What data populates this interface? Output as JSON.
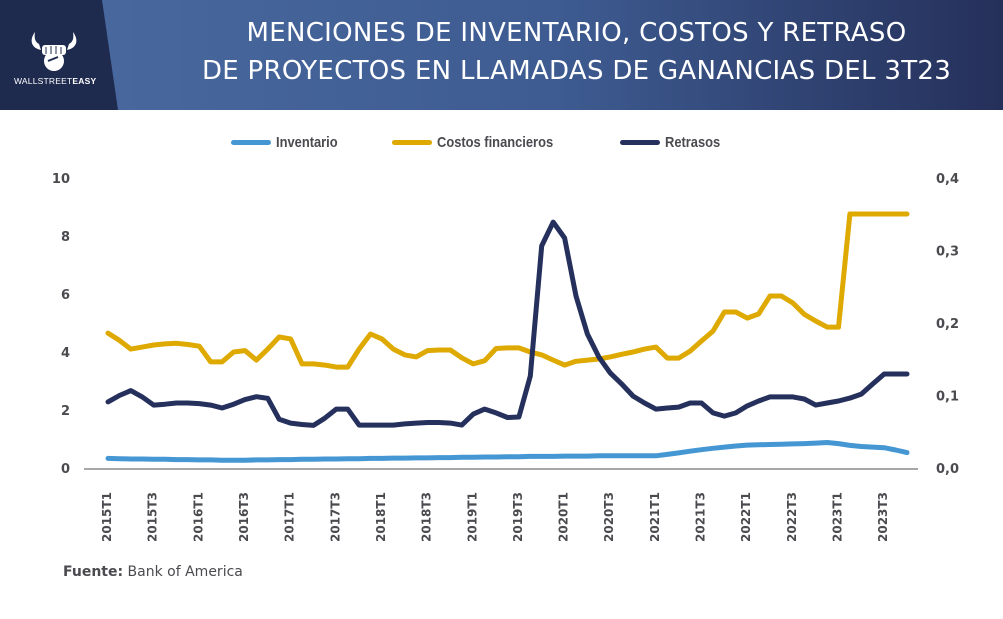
{
  "header": {
    "brand": {
      "name_regular": "WALLSTREET",
      "name_bold": "EASY",
      "icon": "bull-fist-logo-icon"
    },
    "title_line1": "MENCIONES DE INVENTARIO, COSTOS Y RETRASO",
    "title_line2": "DE PROYECTOS EN LLAMADAS DE GANANCIAS DEL 3T23",
    "colors": {
      "dark": "#1f2a4f",
      "mid": "#3e5c92"
    }
  },
  "source": {
    "label": "Fuente:",
    "value": "Bank of America"
  },
  "chart_data": {
    "type": "line",
    "title": "MENCIONES DE INVENTARIO, COSTOS Y RETRASO DE PROYECTOS EN LLAMADAS DE GANANCIAS DEL 3T23",
    "xlabel": "",
    "ylabel": "",
    "ylim": [
      0,
      10
    ],
    "y2lim": [
      0,
      0.4
    ],
    "yticks": [
      "0",
      "2",
      "4",
      "6",
      "8",
      "10"
    ],
    "y2ticks": [
      "0,0",
      "0,1",
      "0,2",
      "0,3",
      "0,4"
    ],
    "xtick_labels": [
      "2015T1",
      "2015T3",
      "2016T1",
      "2016T3",
      "2017T1",
      "2017T3",
      "2018T1",
      "2018T3",
      "2019T1",
      "2019T3",
      "2020T1",
      "2020T3",
      "2021T1",
      "2021T3",
      "2022T1",
      "2022T3",
      "2023T1",
      "2023T3"
    ],
    "x_points_per_tick": 4,
    "grid": false,
    "legend_position": "top",
    "series": [
      {
        "name": "Inventario",
        "color": "#4597d3",
        "values": [
          0.33,
          0.32,
          0.31,
          0.31,
          0.3,
          0.3,
          0.29,
          0.29,
          0.28,
          0.28,
          0.27,
          0.27,
          0.27,
          0.28,
          0.28,
          0.29,
          0.29,
          0.3,
          0.3,
          0.31,
          0.31,
          0.32,
          0.32,
          0.33,
          0.33,
          0.34,
          0.34,
          0.35,
          0.35,
          0.36,
          0.36,
          0.37,
          0.37,
          0.38,
          0.38,
          0.39,
          0.39,
          0.4,
          0.4,
          0.4,
          0.41,
          0.41,
          0.41,
          0.42,
          0.42,
          0.42,
          0.42,
          0.42,
          0.42,
          0.47,
          0.52,
          0.58,
          0.63,
          0.68,
          0.72,
          0.76,
          0.79,
          0.8,
          0.81,
          0.82,
          0.83,
          0.84,
          0.86,
          0.88,
          0.84,
          0.78,
          0.74,
          0.72,
          0.7,
          0.62,
          0.53
        ]
      },
      {
        "name": "Costos financieros",
        "color": "#dea900",
        "values": [
          4.65,
          4.4,
          4.1,
          4.17,
          4.24,
          4.28,
          4.3,
          4.26,
          4.2,
          3.66,
          3.66,
          4.0,
          4.05,
          3.72,
          4.1,
          4.52,
          4.45,
          3.59,
          3.59,
          3.55,
          3.48,
          3.48,
          4.1,
          4.62,
          4.45,
          4.1,
          3.9,
          3.83,
          4.05,
          4.07,
          4.07,
          3.8,
          3.59,
          3.7,
          4.12,
          4.14,
          4.14,
          4.0,
          3.9,
          3.72,
          3.55,
          3.68,
          3.72,
          3.76,
          3.83,
          3.92,
          4.0,
          4.1,
          4.17,
          3.79,
          3.79,
          4.03,
          4.38,
          4.72,
          5.38,
          5.38,
          5.17,
          5.31,
          5.93,
          5.93,
          5.69,
          5.3,
          5.07,
          4.86,
          4.86,
          8.76,
          8.76,
          8.76,
          8.76,
          8.76,
          8.76
        ]
      },
      {
        "name": "Retrasos",
        "color": "#25305c",
        "values": [
          2.28,
          2.5,
          2.67,
          2.45,
          2.17,
          2.2,
          2.24,
          2.24,
          2.22,
          2.17,
          2.07,
          2.2,
          2.36,
          2.46,
          2.4,
          1.68,
          1.55,
          1.5,
          1.47,
          1.72,
          2.03,
          2.03,
          1.48,
          1.48,
          1.48,
          1.48,
          1.52,
          1.55,
          1.57,
          1.57,
          1.55,
          1.48,
          1.86,
          2.03,
          1.9,
          1.74,
          1.76,
          3.17,
          7.66,
          8.48,
          7.93,
          5.93,
          4.62,
          3.83,
          3.28,
          2.9,
          2.48,
          2.24,
          2.03,
          2.07,
          2.1,
          2.24,
          2.24,
          1.9,
          1.79,
          1.9,
          2.14,
          2.31,
          2.45,
          2.45,
          2.45,
          2.38,
          2.17,
          2.24,
          2.31,
          2.41,
          2.55,
          2.9,
          3.24,
          3.24,
          3.24
        ]
      }
    ]
  }
}
